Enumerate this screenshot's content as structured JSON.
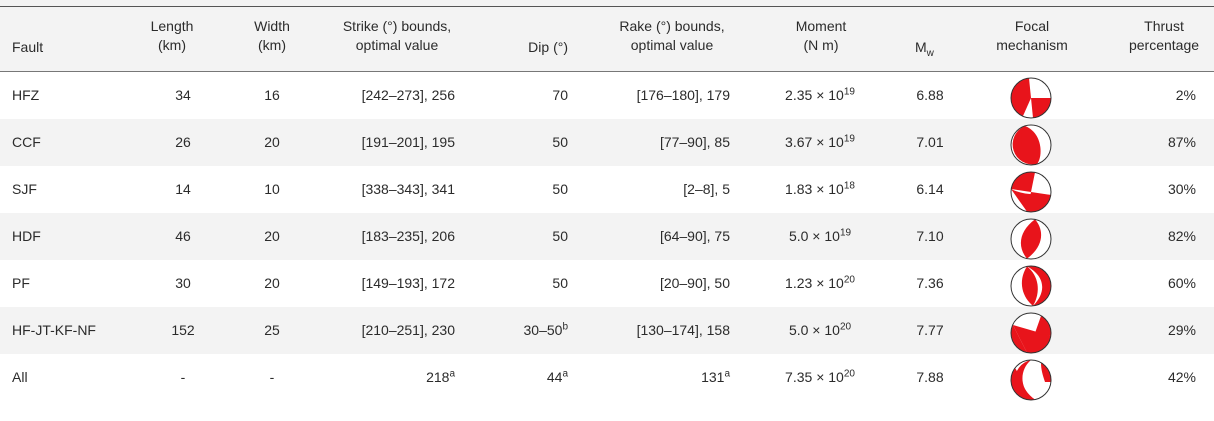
{
  "table": {
    "headers": {
      "fault": "Fault",
      "length": [
        "Length",
        "(km)"
      ],
      "width": [
        "Width",
        "(km)"
      ],
      "strike": [
        "Strike (°) bounds,",
        "optimal value"
      ],
      "dip": "Dip (°)",
      "rake": [
        "Rake (°) bounds,",
        "optimal value"
      ],
      "moment": [
        "Moment",
        "(N m)"
      ],
      "mw_base": "M",
      "mw_sub": "w",
      "focal": [
        "Focal",
        "mechanism"
      ],
      "thrust": [
        "Thrust",
        "percentage"
      ]
    },
    "rows": [
      {
        "fault": "HFZ",
        "length": "34",
        "width": "16",
        "strike": "[242–273], 256",
        "strike_sup": "",
        "dip": "70",
        "dip_sup": "",
        "rake": "[176–180], 179",
        "rake_sup": "",
        "moment_mant": "2.35",
        "moment_exp": "19",
        "mw": "6.88",
        "thrust": "2%"
      },
      {
        "fault": "CCF",
        "length": "26",
        "width": "20",
        "strike": "[191–201], 195",
        "strike_sup": "",
        "dip": "50",
        "dip_sup": "",
        "rake": "[77–90], 85",
        "rake_sup": "",
        "moment_mant": "3.67",
        "moment_exp": "19",
        "mw": "7.01",
        "thrust": "87%"
      },
      {
        "fault": "SJF",
        "length": "14",
        "width": "10",
        "strike": "[338–343], 341",
        "strike_sup": "",
        "dip": "50",
        "dip_sup": "",
        "rake": "[2–8], 5",
        "rake_sup": "",
        "moment_mant": "1.83",
        "moment_exp": "18",
        "mw": "6.14",
        "thrust": "30%"
      },
      {
        "fault": "HDF",
        "length": "46",
        "width": "20",
        "strike": "[183–235], 206",
        "strike_sup": "",
        "dip": "50",
        "dip_sup": "",
        "rake": "[64–90], 75",
        "rake_sup": "",
        "moment_mant": "5.0",
        "moment_exp": "19",
        "mw": "7.10",
        "thrust": "82%"
      },
      {
        "fault": "PF",
        "length": "30",
        "width": "20",
        "strike": "[149–193], 172",
        "strike_sup": "",
        "dip": "50",
        "dip_sup": "",
        "rake": "[20–90], 50",
        "rake_sup": "",
        "moment_mant": "1.23",
        "moment_exp": "20",
        "mw": "7.36",
        "thrust": "60%"
      },
      {
        "fault": "HF-JT-KF-NF",
        "length": "152",
        "width": "25",
        "strike": "[210–251], 230",
        "strike_sup": "",
        "dip": "30–50",
        "dip_sup": "b",
        "rake": "[130–174], 158",
        "rake_sup": "",
        "moment_mant": "5.0",
        "moment_exp": "20",
        "mw": "7.77",
        "thrust": "29%"
      },
      {
        "fault": "All",
        "length": "-",
        "width": "-",
        "strike": "218",
        "strike_sup": "a",
        "dip": "44",
        "dip_sup": "a",
        "rake": "131",
        "rake_sup": "a",
        "moment_mant": "7.35",
        "moment_exp": "20",
        "mw": "7.88",
        "thrust": "42%"
      }
    ],
    "times_symbol": "× 10",
    "beachball_colors": {
      "compression": "#e8141b",
      "dilatation": "#ffffff",
      "outline": "#333333"
    }
  }
}
